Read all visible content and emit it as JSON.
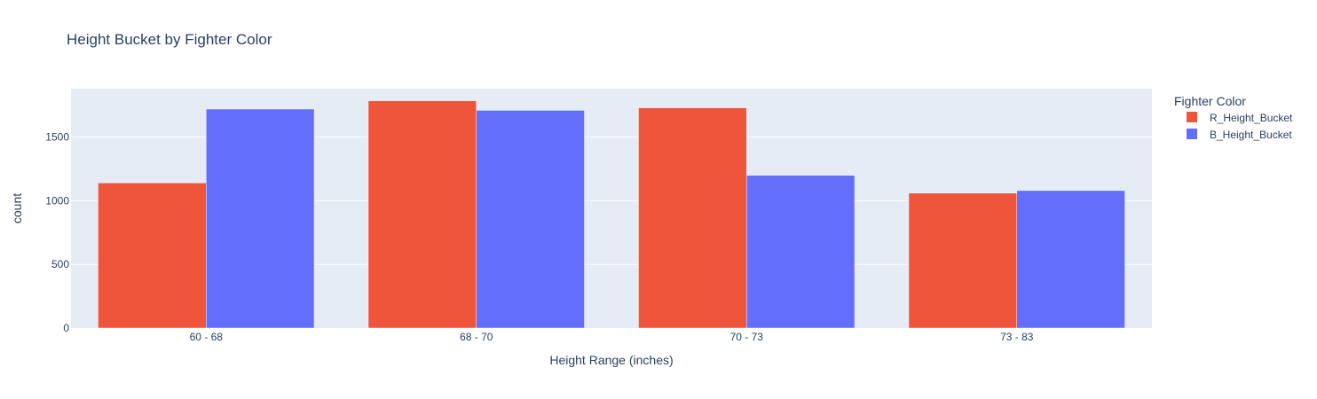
{
  "chart_data": {
    "type": "bar",
    "title": "Height Bucket by Fighter Color",
    "xlabel": "Height Range (inches)",
    "ylabel": "count",
    "categories": [
      "60 - 68",
      "68 - 70",
      "70 - 73",
      "73 - 83"
    ],
    "series": [
      {
        "name": "R_Height_Bucket",
        "color": "#EF553B",
        "values": [
          1140,
          1785,
          1730,
          1060
        ]
      },
      {
        "name": "B_Height_Bucket",
        "color": "#636EFA",
        "values": [
          1720,
          1710,
          1200,
          1080
        ]
      }
    ],
    "ylim": [
      0,
      1880
    ],
    "yticks": [
      0,
      500,
      1000,
      1500
    ],
    "ytick_labels": [
      "0",
      "500",
      "1000",
      "1500"
    ],
    "legend_title": "Fighter Color",
    "legend_position": "top-right",
    "grid": true,
    "plot_background": "#E5ECF6"
  }
}
